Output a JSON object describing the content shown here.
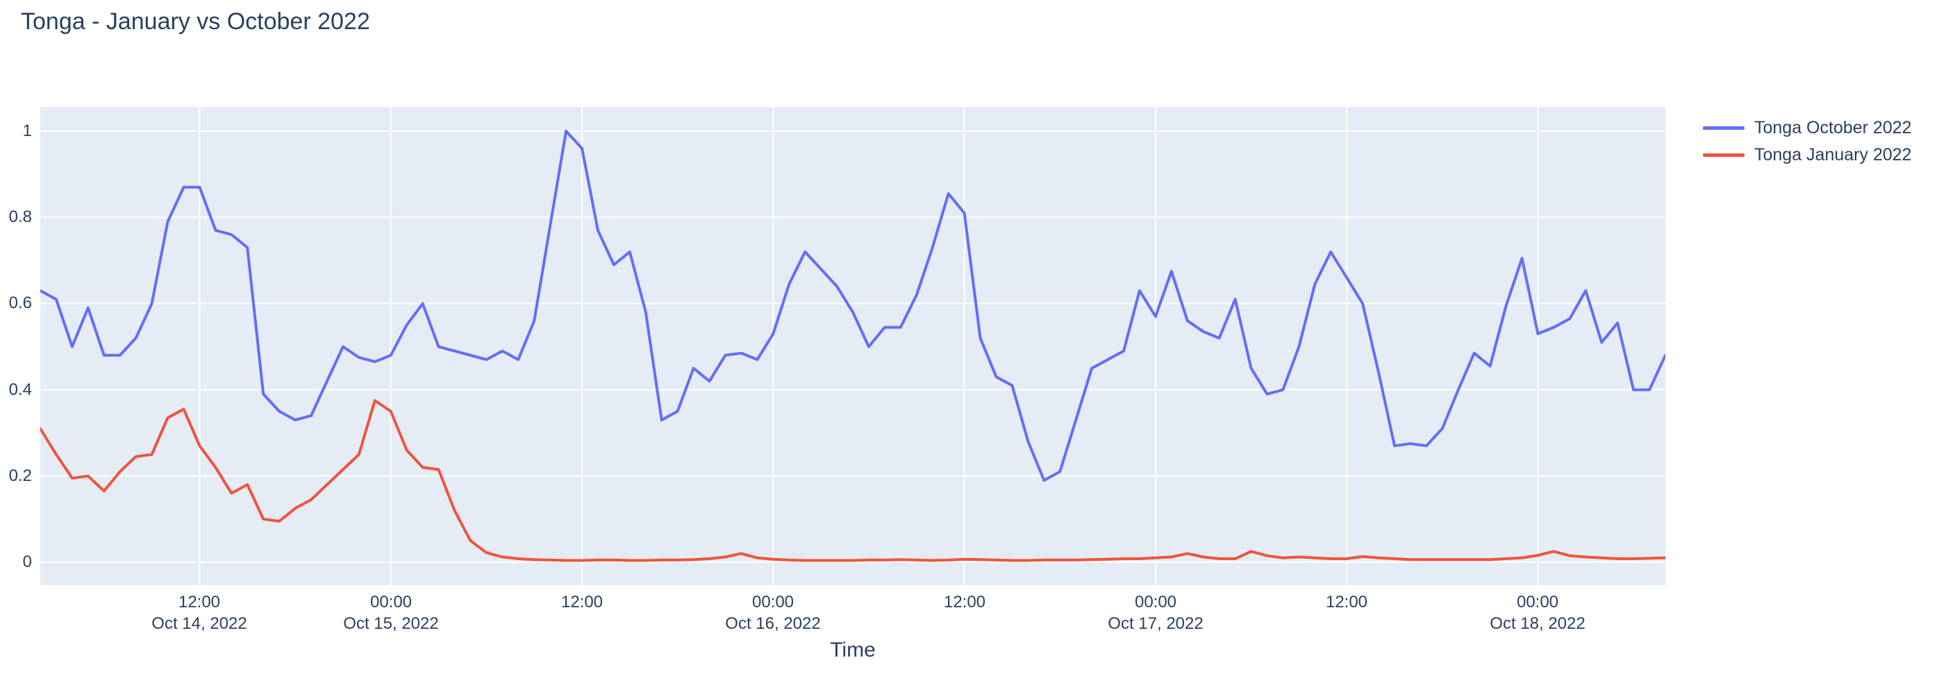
{
  "title": "Tonga - January vs October 2022",
  "colors": {
    "october_line": "#636EFA",
    "january_line": "#EF553B",
    "plot_background": "#E5ECF6",
    "gridline": "#FFFFFF",
    "text": "#2A3F5F"
  },
  "legend": [
    {
      "label": "Tonga October 2022",
      "color": "#636EFA"
    },
    {
      "label": "Tonga January 2022",
      "color": "#EF553B"
    }
  ],
  "yaxis": {
    "ticks": [
      0,
      0.2,
      0.4,
      0.6,
      0.8,
      1
    ]
  },
  "xaxis": {
    "title": "Time",
    "ticks": [
      {
        "i": 10,
        "time": "12:00",
        "date": "Oct 14, 2022"
      },
      {
        "i": 22,
        "time": "00:00",
        "date": "Oct 15, 2022"
      },
      {
        "i": 34,
        "time": "12:00",
        "date": ""
      },
      {
        "i": 46,
        "time": "00:00",
        "date": "Oct 16, 2022"
      },
      {
        "i": 58,
        "time": "12:00",
        "date": ""
      },
      {
        "i": 70,
        "time": "00:00",
        "date": "Oct 17, 2022"
      },
      {
        "i": 82,
        "time": "12:00",
        "date": ""
      },
      {
        "i": 94,
        "time": "00:00",
        "date": "Oct 18, 2022"
      }
    ]
  },
  "chart_data": {
    "type": "line",
    "title": "Tonga - January vs October 2022",
    "xlabel": "Time",
    "ylabel": "",
    "x_start": "2022-10-14 02:00",
    "x_end": "2022-10-18 08:00",
    "x_step_hours": 1,
    "point_count": 103,
    "ylim": [
      -0.05,
      1.06
    ],
    "grid": true,
    "legend_position": "right",
    "series": [
      {
        "name": "Tonga October 2022",
        "color": "#636EFA",
        "values": [
          0.63,
          0.61,
          0.5,
          0.59,
          0.48,
          0.48,
          0.52,
          0.6,
          0.79,
          0.87,
          0.87,
          0.77,
          0.76,
          0.73,
          0.39,
          0.35,
          0.33,
          0.34,
          0.42,
          0.5,
          0.475,
          0.465,
          0.48,
          0.55,
          0.6,
          0.5,
          0.49,
          0.48,
          0.47,
          0.49,
          0.47,
          0.56,
          0.78,
          1.0,
          0.96,
          0.77,
          0.69,
          0.72,
          0.58,
          0.33,
          0.35,
          0.45,
          0.42,
          0.48,
          0.485,
          0.47,
          0.53,
          0.645,
          0.72,
          0.68,
          0.64,
          0.58,
          0.5,
          0.545,
          0.545,
          0.62,
          0.73,
          0.855,
          0.81,
          0.52,
          0.43,
          0.41,
          0.28,
          0.19,
          0.21,
          0.33,
          0.45,
          0.47,
          0.49,
          0.63,
          0.57,
          0.675,
          0.56,
          0.535,
          0.52,
          0.61,
          0.45,
          0.39,
          0.4,
          0.5,
          0.645,
          0.72,
          0.66,
          0.6,
          0.44,
          0.27,
          0.275,
          0.27,
          0.31,
          0.4,
          0.485,
          0.455,
          0.595,
          0.705,
          0.53,
          0.545,
          0.565,
          0.63,
          0.51,
          0.555,
          0.4,
          0.4,
          0.48
        ]
      },
      {
        "name": "Tonga January 2022",
        "color": "#EF553B",
        "values": [
          0.31,
          0.25,
          0.195,
          0.2,
          0.165,
          0.21,
          0.245,
          0.25,
          0.335,
          0.355,
          0.27,
          0.22,
          0.16,
          0.18,
          0.1,
          0.095,
          0.125,
          0.145,
          0.18,
          0.215,
          0.25,
          0.375,
          0.35,
          0.26,
          0.22,
          0.215,
          0.12,
          0.05,
          0.022,
          0.012,
          0.008,
          0.006,
          0.005,
          0.004,
          0.004,
          0.005,
          0.005,
          0.004,
          0.004,
          0.005,
          0.005,
          0.006,
          0.008,
          0.012,
          0.02,
          0.01,
          0.007,
          0.005,
          0.004,
          0.004,
          0.004,
          0.004,
          0.005,
          0.005,
          0.006,
          0.005,
          0.004,
          0.005,
          0.007,
          0.006,
          0.005,
          0.004,
          0.004,
          0.005,
          0.005,
          0.005,
          0.006,
          0.007,
          0.008,
          0.008,
          0.01,
          0.012,
          0.02,
          0.012,
          0.008,
          0.008,
          0.025,
          0.015,
          0.01,
          0.012,
          0.01,
          0.008,
          0.008,
          0.013,
          0.01,
          0.008,
          0.006,
          0.006,
          0.006,
          0.006,
          0.006,
          0.006,
          0.008,
          0.01,
          0.016,
          0.025,
          0.015,
          0.012,
          0.01,
          0.008,
          0.008,
          0.009,
          0.01
        ]
      }
    ]
  }
}
